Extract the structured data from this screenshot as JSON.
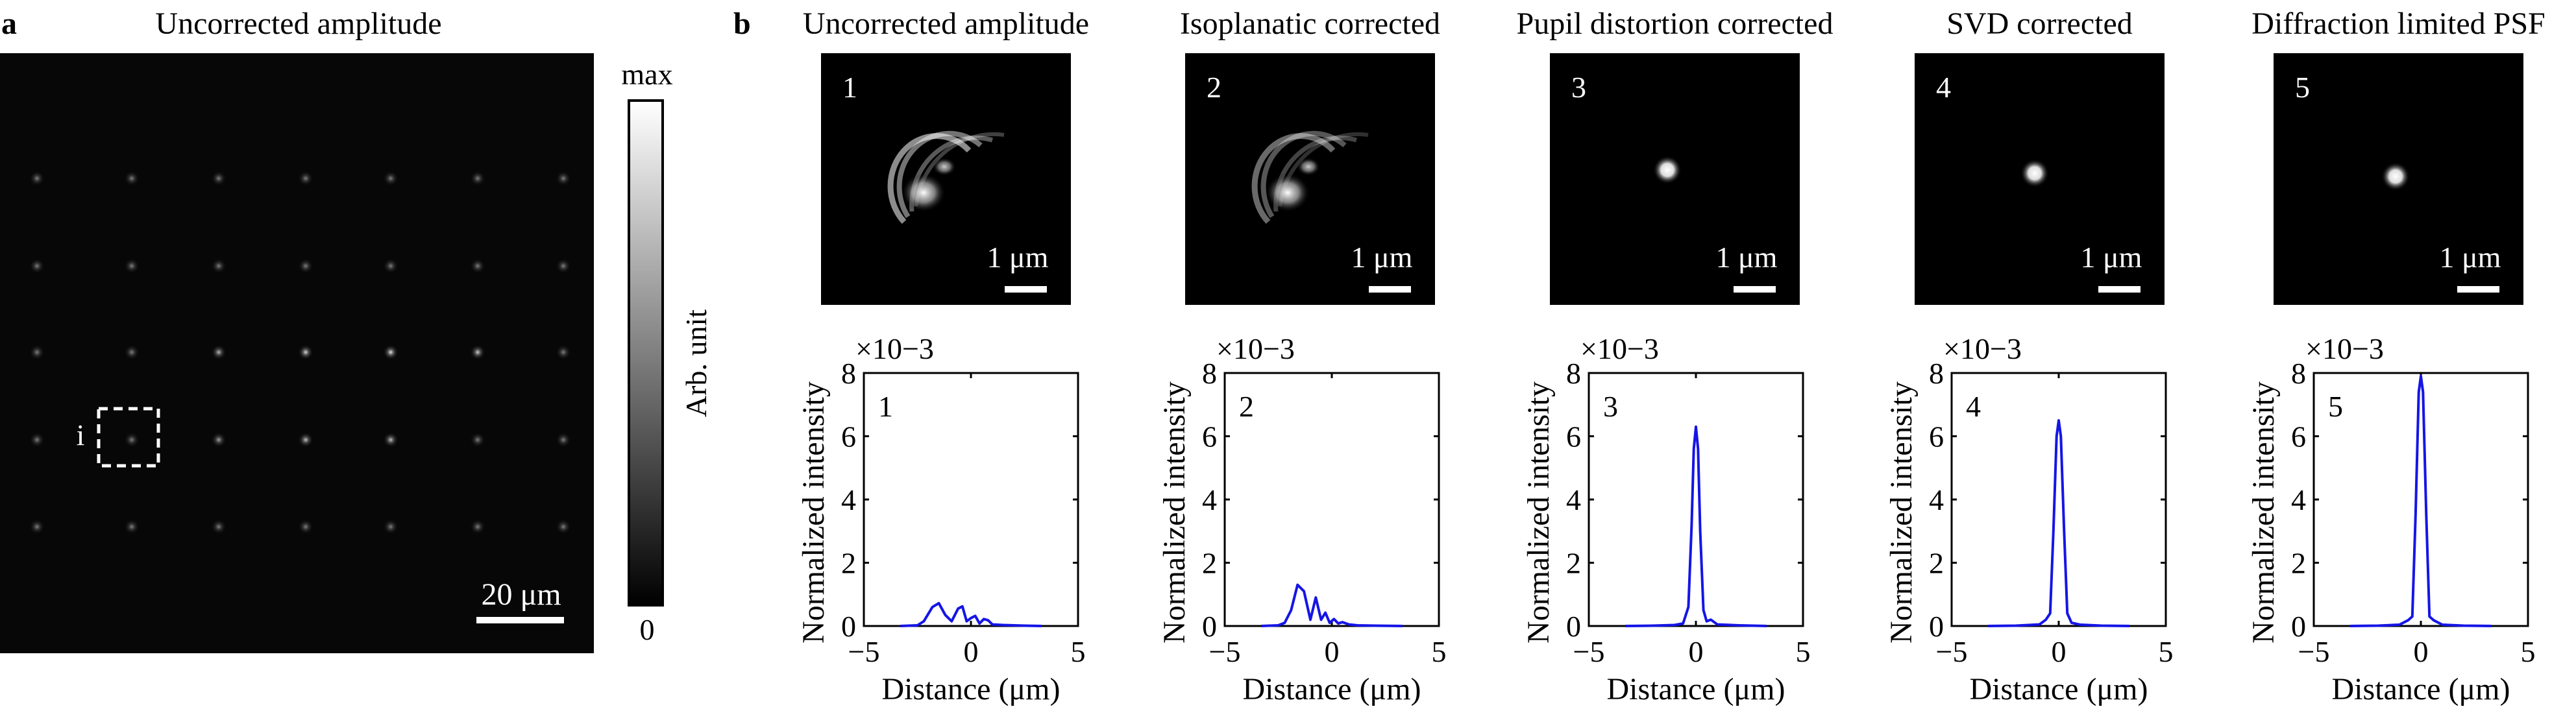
{
  "panel_a": {
    "letter": "a",
    "title": "Uncorrected amplitude",
    "roi_label": "i",
    "scale_bar_label": "20 μm",
    "colorbar": {
      "top_label": "max",
      "bottom_label": "0",
      "axis_label": "Arb. unit"
    }
  },
  "panel_b": {
    "letter": "b",
    "images": [
      {
        "title": "Uncorrected amplitude",
        "index": "1",
        "scale_bar_label": "1 μm"
      },
      {
        "title": "Isoplanatic corrected",
        "index": "2",
        "scale_bar_label": "1 μm"
      },
      {
        "title": "Pupil distortion corrected",
        "index": "3",
        "scale_bar_label": "1 μm"
      },
      {
        "title": "SVD corrected",
        "index": "4",
        "scale_bar_label": "1 μm"
      },
      {
        "title": "Diffraction limited PSF",
        "index": "5",
        "scale_bar_label": "1 μm"
      }
    ]
  },
  "chart_data": [
    {
      "type": "line",
      "panel": "1",
      "xlabel": "Distance (μm)",
      "ylabel": "Normalized intensity",
      "yscale_label": "×10−3",
      "xlim": [
        -5,
        5
      ],
      "ylim": [
        0,
        8
      ],
      "xticks": [
        "−5",
        "0",
        "5"
      ],
      "yticks": [
        "0",
        "2",
        "4",
        "6",
        "8"
      ],
      "line_color": "#1515e6",
      "x": [
        -3.3,
        -2.5,
        -2.2,
        -1.8,
        -1.5,
        -1.2,
        -0.9,
        -0.6,
        -0.4,
        -0.2,
        0,
        0.2,
        0.4,
        0.6,
        0.8,
        1.0,
        1.5,
        2.5,
        3.3
      ],
      "y": [
        0,
        0.02,
        0.15,
        0.6,
        0.72,
        0.35,
        0.15,
        0.55,
        0.62,
        0.15,
        0.25,
        0.32,
        0.08,
        0.22,
        0.18,
        0.05,
        0.03,
        0.01,
        0
      ]
    },
    {
      "type": "line",
      "panel": "2",
      "xlabel": "Distance (μm)",
      "ylabel": "Normalized intensity",
      "yscale_label": "×10−3",
      "xlim": [
        -5,
        5
      ],
      "ylim": [
        0,
        8
      ],
      "xticks": [
        "−5",
        "0",
        "5"
      ],
      "yticks": [
        "0",
        "2",
        "4",
        "6",
        "8"
      ],
      "line_color": "#1515e6",
      "x": [
        -3.3,
        -2.5,
        -2.2,
        -1.9,
        -1.6,
        -1.3,
        -1.0,
        -0.75,
        -0.5,
        -0.3,
        -0.1,
        0.1,
        0.3,
        0.5,
        0.8,
        1.2,
        2.0,
        3.3
      ],
      "y": [
        0,
        0.02,
        0.1,
        0.5,
        1.3,
        1.1,
        0.2,
        0.9,
        0.2,
        0.42,
        0.1,
        0.22,
        0.08,
        0.12,
        0.05,
        0.02,
        0.01,
        0
      ]
    },
    {
      "type": "line",
      "panel": "3",
      "xlabel": "Distance (μm)",
      "ylabel": "Normalized intensity",
      "yscale_label": "×10−3",
      "xlim": [
        -5,
        5
      ],
      "ylim": [
        0,
        8
      ],
      "xticks": [
        "−5",
        "0",
        "5"
      ],
      "yticks": [
        "0",
        "2",
        "4",
        "6",
        "8"
      ],
      "line_color": "#1515e6",
      "x": [
        -3.3,
        -2.0,
        -1.0,
        -0.6,
        -0.35,
        -0.2,
        -0.1,
        0,
        0.1,
        0.2,
        0.35,
        0.5,
        0.7,
        1.0,
        2.0,
        3.3
      ],
      "y": [
        0,
        0.01,
        0.03,
        0.08,
        0.6,
        3.2,
        5.6,
        6.3,
        5.6,
        3.0,
        0.5,
        0.15,
        0.2,
        0.05,
        0.02,
        0
      ]
    },
    {
      "type": "line",
      "panel": "4",
      "xlabel": "Distance (μm)",
      "ylabel": "Normalized intensity",
      "yscale_label": "×10−3",
      "xlim": [
        -5,
        5
      ],
      "ylim": [
        0,
        8
      ],
      "xticks": [
        "−5",
        "0",
        "5"
      ],
      "yticks": [
        "0",
        "2",
        "4",
        "6",
        "8"
      ],
      "line_color": "#1515e6",
      "x": [
        -3.3,
        -2.0,
        -0.9,
        -0.6,
        -0.4,
        -0.25,
        -0.1,
        0,
        0.1,
        0.25,
        0.4,
        0.6,
        1.0,
        2.0,
        3.3
      ],
      "y": [
        0,
        0.01,
        0.05,
        0.2,
        0.4,
        3.0,
        6.0,
        6.5,
        6.0,
        3.0,
        0.4,
        0.1,
        0.04,
        0.01,
        0
      ]
    },
    {
      "type": "line",
      "panel": "5",
      "xlabel": "Distance (μm)",
      "ylabel": "Normalized intensity",
      "yscale_label": "×10−3",
      "xlim": [
        -5,
        5
      ],
      "ylim": [
        0,
        8
      ],
      "xticks": [
        "−5",
        "0",
        "5"
      ],
      "yticks": [
        "0",
        "2",
        "4",
        "6",
        "8"
      ],
      "line_color": "#1515e6",
      "x": [
        -3.3,
        -2.0,
        -1.0,
        -0.6,
        -0.4,
        -0.25,
        -0.1,
        0,
        0.1,
        0.25,
        0.4,
        0.6,
        1.0,
        2.0,
        3.3
      ],
      "y": [
        0,
        0.01,
        0.04,
        0.18,
        0.3,
        3.5,
        7.4,
        7.9,
        7.4,
        3.5,
        0.3,
        0.18,
        0.04,
        0.01,
        0
      ]
    }
  ]
}
